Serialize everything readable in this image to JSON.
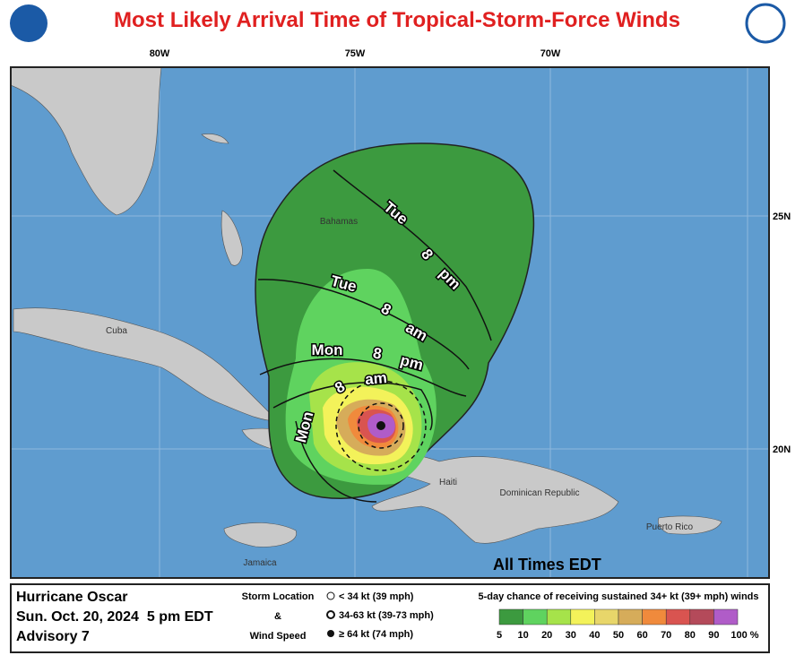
{
  "title": "Most Likely Arrival Time of Tropical-Storm-Force Winds",
  "lon_labels": [
    "80W",
    "75W",
    "70W"
  ],
  "lat_labels": [
    "25N",
    "20N"
  ],
  "places": [
    "Cuba",
    "Bahamas",
    "Haiti",
    "Dominican Republic",
    "Puerto Rico",
    "Jamaica"
  ],
  "contour_labels": [
    [
      "Tue",
      "8",
      "pm"
    ],
    [
      "Tue",
      "8",
      "am"
    ],
    [
      "Mon",
      "8",
      "pm"
    ],
    [
      "Mon",
      "8",
      "am"
    ]
  ],
  "time_note": "All Times EDT",
  "legend": {
    "storm": "Hurricane Oscar",
    "date": "Sun. Oct. 20, 2024  5 pm EDT",
    "advisory": "Advisory 7",
    "symbol_title": [
      "Storm Location",
      "&",
      "Wind Speed"
    ],
    "symbols": [
      "< 34 kt (39 mph)",
      "34-63 kt (39-73 mph)",
      "≥ 64 kt (74 mph)"
    ],
    "scale_title": "5-day chance of receiving sustained 34+ kt (39+ mph) winds",
    "scale_labels": [
      "5",
      "10",
      "20",
      "30",
      "40",
      "50",
      "60",
      "70",
      "80",
      "90",
      "100 %"
    ],
    "scale_colors": [
      "#3c9a3f",
      "#5fd35f",
      "#a6e34a",
      "#f3f25a",
      "#e8d66a",
      "#d6ac5a",
      "#f08a3c",
      "#d95450",
      "#b44a5a",
      "#b05cc8"
    ]
  }
}
